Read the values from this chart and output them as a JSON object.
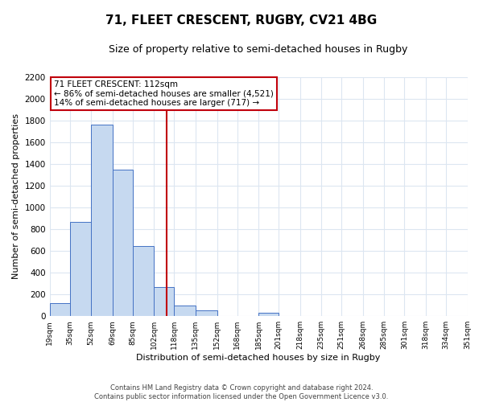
{
  "title": "71, FLEET CRESCENT, RUGBY, CV21 4BG",
  "subtitle": "Size of property relative to semi-detached houses in Rugby",
  "xlabel": "Distribution of semi-detached houses by size in Rugby",
  "ylabel": "Number of semi-detached properties",
  "bar_edges": [
    19,
    35,
    52,
    69,
    85,
    102,
    118,
    135,
    152,
    168,
    185,
    201,
    218,
    235,
    251,
    268,
    285,
    301,
    318,
    334,
    351
  ],
  "bar_heights": [
    120,
    870,
    1760,
    1350,
    645,
    270,
    100,
    50,
    0,
    0,
    30,
    0,
    0,
    0,
    0,
    0,
    0,
    0,
    0,
    0
  ],
  "bar_color": "#c6d9f0",
  "bar_edge_color": "#4472c4",
  "vline_x": 112,
  "vline_color": "#c0000b",
  "annotation_title": "71 FLEET CRESCENT: 112sqm",
  "annotation_line1": "← 86% of semi-detached houses are smaller (4,521)",
  "annotation_line2": "14% of semi-detached houses are larger (717) →",
  "annotation_box_color": "#ffffff",
  "annotation_box_edge": "#c0000b",
  "ylim": [
    0,
    2200
  ],
  "yticks": [
    0,
    200,
    400,
    600,
    800,
    1000,
    1200,
    1400,
    1600,
    1800,
    2000,
    2200
  ],
  "tick_labels": [
    "19sqm",
    "35sqm",
    "52sqm",
    "69sqm",
    "85sqm",
    "102sqm",
    "118sqm",
    "135sqm",
    "152sqm",
    "168sqm",
    "185sqm",
    "201sqm",
    "218sqm",
    "235sqm",
    "251sqm",
    "268sqm",
    "285sqm",
    "301sqm",
    "318sqm",
    "334sqm",
    "351sqm"
  ],
  "footer1": "Contains HM Land Registry data © Crown copyright and database right 2024.",
  "footer2": "Contains public sector information licensed under the Open Government Licence v3.0.",
  "bg_color": "#ffffff",
  "grid_color": "#dce6f1",
  "title_fontsize": 11,
  "subtitle_fontsize": 9,
  "annotation_fontsize": 7.5,
  "ylabel_fontsize": 8,
  "xlabel_fontsize": 8,
  "footer_fontsize": 6
}
